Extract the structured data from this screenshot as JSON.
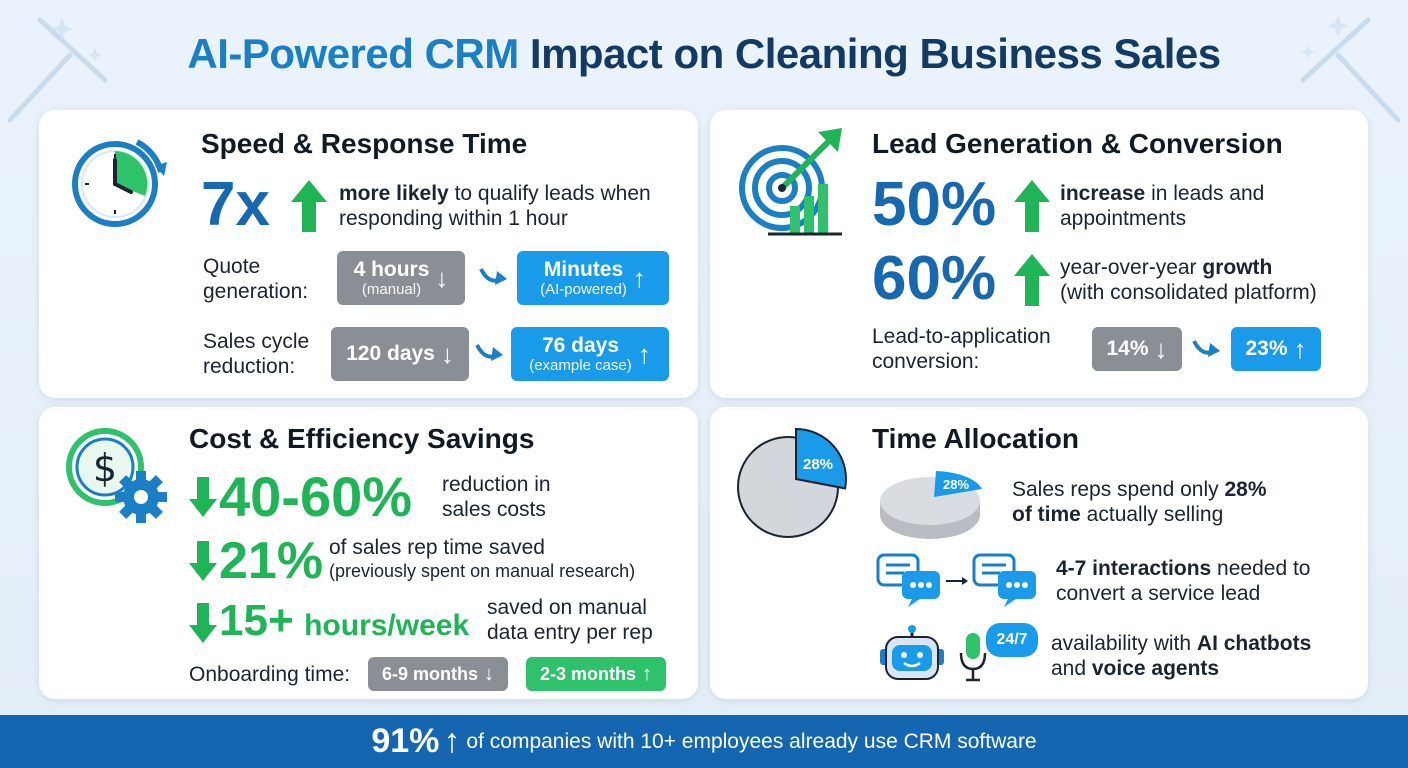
{
  "title": {
    "part1": "AI-Powered CRM",
    "part2": " Impact on Cleaning Business Sales"
  },
  "colors": {
    "blue": "#1668b0",
    "accent_blue": "#1a9bea",
    "green": "#1fb557",
    "gray": "#8a8f96",
    "navy": "#123a63",
    "footer": "#1566b0"
  },
  "speed": {
    "title": "Speed & Response Time",
    "icon": "stopwatch-icon",
    "stat": "7x",
    "desc_bold": "more likely",
    "desc_rest": " to qualify leads when",
    "desc_line2": "responding within 1 hour",
    "quote_label_1": "Quote",
    "quote_label_2": "generation:",
    "quote_before_main": "4 hours",
    "quote_before_sub": "(manual)",
    "quote_after_main": "Minutes",
    "quote_after_sub": "(AI-powered)",
    "cycle_label_1": "Sales cycle",
    "cycle_label_2": "reduction:",
    "cycle_before": "120 days",
    "cycle_after_main": "76 days",
    "cycle_after_sub": "(example case)"
  },
  "lead": {
    "title": "Lead Generation & Conversion",
    "icon": "target-growth-icon",
    "stat1": "50%",
    "stat1_bold": "increase",
    "stat1_rest": " in leads and",
    "stat1_line2": "appointments",
    "stat2": "60%",
    "stat2_pre": "year-over-year ",
    "stat2_bold": "growth",
    "stat2_line2": "(with consolidated platform)",
    "conv_label_1": "Lead-to-application",
    "conv_label_2": "conversion:",
    "conv_before": "14%",
    "conv_after": "23%"
  },
  "cost": {
    "title": "Cost & Efficiency Savings",
    "icon": "dollar-gear-icon",
    "stat1": "40-60%",
    "stat1_line1": "reduction in",
    "stat1_line2": "sales costs",
    "stat2": "21%",
    "stat2_line1": "of sales rep time saved",
    "stat2_line2": "(previously spent on manual research)",
    "stat3": "15+",
    "stat3_unit": "hours/week",
    "stat3_line1": "saved on manual",
    "stat3_line2": "data entry per rep",
    "onboard_label": "Onboarding time:",
    "onboard_before": "6-9 months",
    "onboard_after": "2-3 months"
  },
  "time": {
    "title": "Time Allocation",
    "pie_label": "28%",
    "pie_label_small": "28%",
    "selling_fraction": 0.28,
    "row1_pre": "Sales reps spend only ",
    "row1_bold": "28%",
    "row1_bold2": "of time",
    "row1_rest": " actually selling",
    "row2_bold": "4-7 interactions",
    "row2_rest": " needed to",
    "row2_line2": "convert a service lead",
    "badge": "24/7",
    "row3_pre": "availability with ",
    "row3_bold": "AI chatbots",
    "row3_line2_pre": "and ",
    "row3_line2_bold": "voice agents"
  },
  "footer": {
    "stat": "91%",
    "text": "of companies with 10+ employees already use CRM software"
  }
}
